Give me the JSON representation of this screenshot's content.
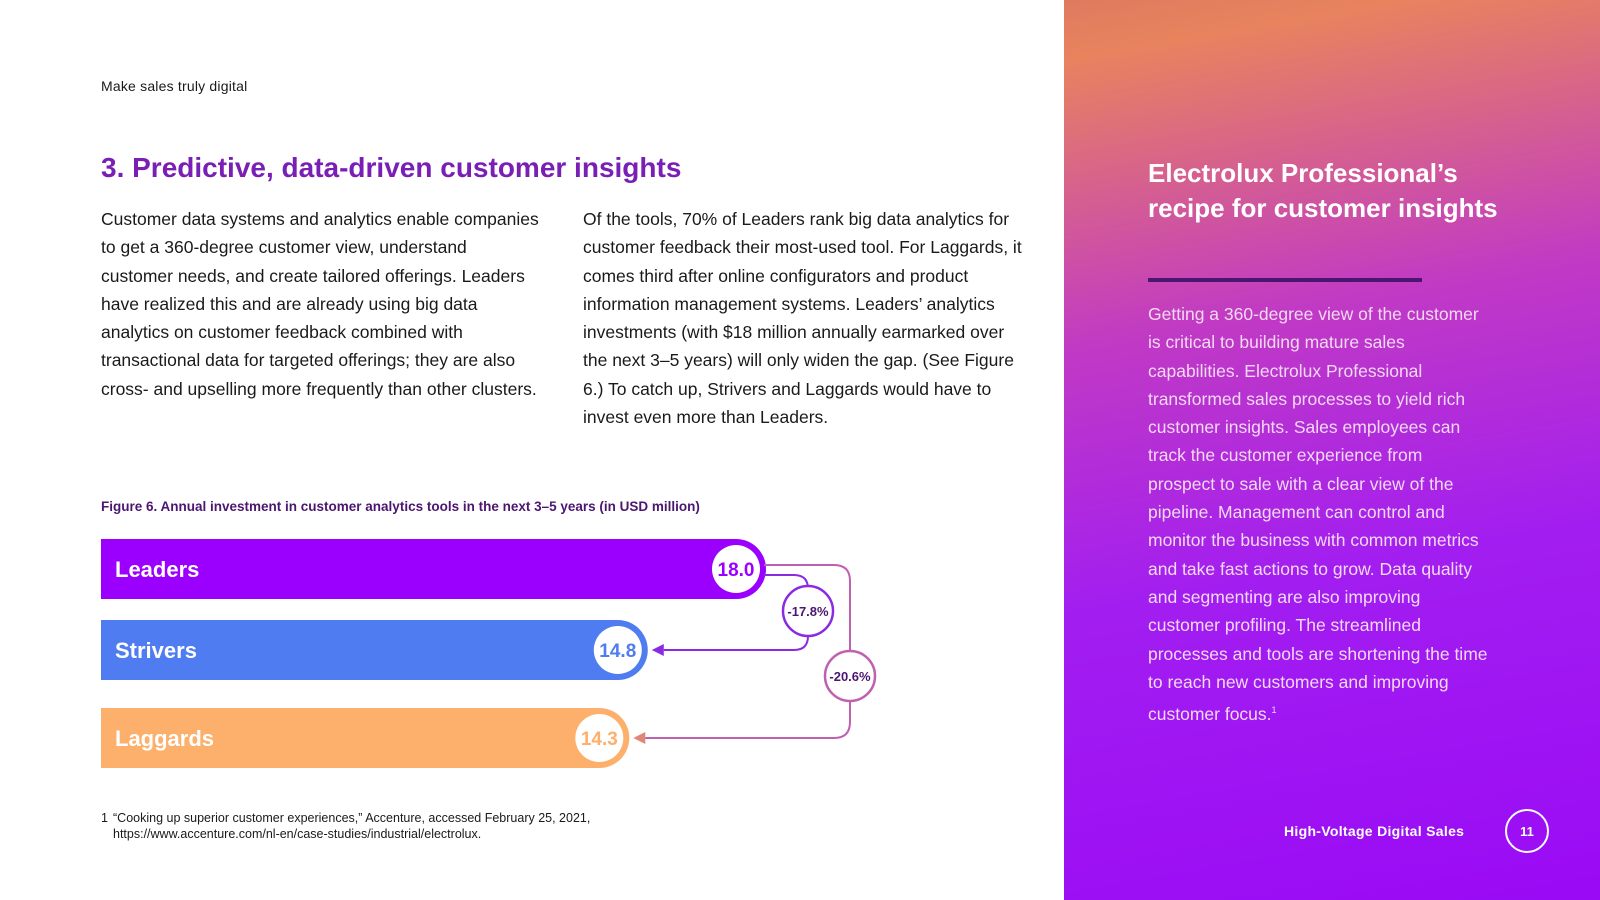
{
  "page": {
    "eyebrow": "Make sales truly digital",
    "section_title": "3. Predictive, data-driven customer insights",
    "paragraph_1": "Customer data systems and analytics enable companies to get a 360-degree customer view, understand customer needs, and create tailored offerings. Leaders have realized this and are already using big data analytics on customer feedback combined with transactional data for targeted offerings; they are also cross- and upselling more frequently than other clusters.",
    "paragraph_2": "Of the tools, 70% of Leaders rank big data analytics for customer feedback their most-used tool. For Laggards, it comes third after online configurators and product information management systems. Leaders’ analytics investments (with $18 million annually earmarked over the next 3–5 years) will only widen the gap. (See Figure 6.) To catch up, Strivers and Laggards would have to invest even more than Leaders."
  },
  "chart_data": {
    "type": "bar",
    "title": "Figure 6. Annual investment in customer analytics tools in the next 3–5 years (in USD million)",
    "categories": [
      "Leaders",
      "Strivers",
      "Laggards"
    ],
    "values": [
      18.0,
      14.8,
      14.3
    ],
    "value_labels": [
      "18.0",
      "14.8",
      "14.3"
    ],
    "colors": [
      "#9b00ff",
      "#4f7cf0",
      "#fdb06c"
    ],
    "xlim": [
      0,
      18.0
    ],
    "annotations": [
      {
        "from": "Leaders",
        "to": "Strivers",
        "label": "-17.8%",
        "color": "#8a2be2"
      },
      {
        "from": "Leaders",
        "to": "Laggards",
        "label": "-20.6%",
        "color": "#c060b0"
      }
    ]
  },
  "footnote": {
    "number": "1",
    "text": "“Cooking up superior customer experiences,” Accenture, accessed February 25, 2021,",
    "url": "https://www.accenture.com/nl-en/case-studies/industrial/electrolux."
  },
  "sidebar": {
    "title": "Electrolux Professional’s recipe for customer insights",
    "body": "Getting a 360-degree view of the customer is critical to building mature sales capabilities. Electrolux Professional transformed sales processes to yield rich customer insights. Sales employees can track the customer experience from prospect to sale with a clear view of the pipeline. Management can control and monitor the business with common metrics and take fast actions to grow. Data quality and segmenting are also improving customer profiling. The streamlined processes and tools are shortening the time to reach new customers and improving customer focus.",
    "body_footnote": "1",
    "footer_label": "High-Voltage Digital Sales",
    "page_number": "11"
  },
  "colors": {
    "title_purple": "#7a1fb5",
    "dark_purple": "#4b1670"
  }
}
